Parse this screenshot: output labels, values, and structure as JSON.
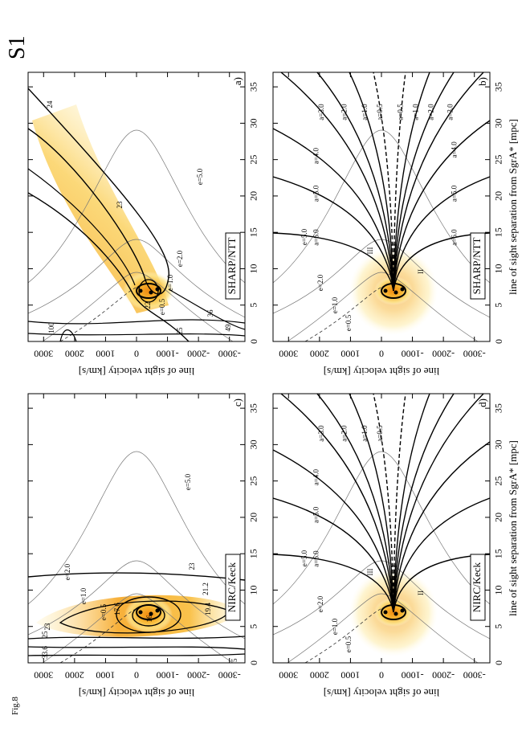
{
  "figure_label": "S1",
  "caption": "Fig.8",
  "chart_data": [
    {
      "type": "contour",
      "panel": "a)",
      "instrument": "SHARP/NTT",
      "ylabel": "line of sight velocity [km/s]",
      "xlim": [
        0,
        37
      ],
      "xticks": [
        0,
        5,
        10,
        15,
        20,
        25,
        30,
        35
      ],
      "ylim": [
        -3500,
        3500
      ],
      "yticks": [
        -3000,
        -2000,
        -1000,
        0,
        1000,
        2000,
        3000
      ],
      "annotations": [
        "24",
        "23",
        "22",
        "25",
        "36",
        "49",
        "100",
        "e=5.0",
        "e=2.0",
        "e=1.0",
        "e=0.5"
      ]
    },
    {
      "type": "contour",
      "panel": "b)",
      "instrument": "SHARP/NTT",
      "ylabel": "line of sight velocity [km/s]",
      "xlabel": "line of sight separation from SgrA* [mpc]",
      "xlim": [
        0,
        37
      ],
      "xticks": [
        0,
        5,
        10,
        15,
        20,
        25,
        30,
        35
      ],
      "ylim": [
        -3500,
        3500
      ],
      "yticks": [
        -3000,
        -2000,
        -1000,
        0,
        1000,
        2000,
        3000
      ],
      "annotations": [
        "a=6.0",
        "a=5.0",
        "a=4.0",
        "a=3.0",
        "a=2.0",
        "a=1.0",
        "a=0.5",
        "a=0.5",
        "a=1.0",
        "a=2.0",
        "a=3.0",
        "a=4.0",
        "a=5.0",
        "a=6.0",
        "III",
        "I",
        "II",
        "e=5.0",
        "e=2.0",
        "e=1.0",
        "e=0.5"
      ]
    },
    {
      "type": "contour",
      "panel": "c)",
      "instrument": "NIRC/Keck",
      "ylabel": "line of sight velocity [km/s]",
      "xlim": [
        0,
        37
      ],
      "xticks": [
        0,
        5,
        10,
        15,
        20,
        25,
        30,
        35
      ],
      "ylim": [
        -3500,
        3500
      ],
      "yticks": [
        -3000,
        -2000,
        -1000,
        0,
        1000,
        2000,
        3000
      ],
      "annotations": [
        "e=5.0",
        "e=2.0",
        "e=1.0",
        "e=0.5",
        "23",
        "21.2",
        "19.4",
        "17.6",
        "16",
        "33.6",
        "25",
        "23",
        "25"
      ]
    },
    {
      "type": "contour",
      "panel": "d)",
      "instrument": "NIRC/Keck",
      "ylabel": "line of sight velocity [km/s]",
      "xlabel": "line of sight separation from SgrA* [mpc]",
      "xlim": [
        0,
        37
      ],
      "xticks": [
        0,
        5,
        10,
        15,
        20,
        25,
        30,
        35
      ],
      "ylim": [
        -3500,
        3500
      ],
      "yticks": [
        -3000,
        -2000,
        -1000,
        0,
        1000,
        2000,
        3000
      ],
      "annotations": [
        "a=6.0",
        "a=5.0",
        "a=4.0",
        "a=3.0",
        "a=2.0",
        "a=1.0",
        "a=0.5",
        "III",
        "I",
        "II",
        "e=5.0",
        "e=2.0",
        "e=1.0",
        "e=0.5"
      ]
    }
  ]
}
